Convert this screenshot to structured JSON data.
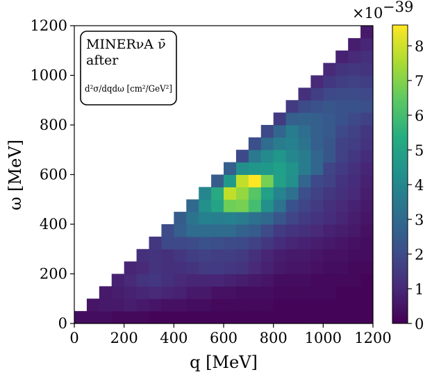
{
  "chart_data": {
    "type": "heatmap",
    "annotation": {
      "line1": "MINERνA ν̄",
      "line2": "after",
      "line3": "d²σ/dqdω [cm²/GeV²]"
    },
    "xlabel": "q [MeV]",
    "ylabel": "ω [MeV]",
    "xlim": [
      0,
      1200
    ],
    "ylim": [
      0,
      1200
    ],
    "bin_width": 50,
    "x_ticks": [
      0,
      200,
      400,
      600,
      800,
      1000,
      1200
    ],
    "y_ticks": [
      0,
      200,
      400,
      600,
      800,
      1000,
      1200
    ],
    "colorbar": {
      "colormap": "viridis",
      "range": [
        0,
        8.6
      ],
      "ticks": [
        0,
        1,
        2,
        3,
        4,
        5,
        6,
        7,
        8
      ],
      "multiplier": "×10^-39"
    },
    "grid": false,
    "values_rows_by_omega_bin": [
      [
        0.3,
        0.3,
        0.3,
        0.2,
        0.2,
        0.2,
        0.1,
        0.1,
        0.1,
        0.1,
        0.1,
        0.1,
        0.1,
        0.1,
        0.1,
        0.1,
        0.1,
        0.1,
        0.1,
        0.1,
        0.1,
        0.1,
        0.1,
        0.1
      ],
      [
        null,
        0.5,
        0.6,
        0.6,
        0.7,
        0.6,
        0.5,
        0.4,
        0.4,
        0.3,
        0.3,
        0.2,
        0.2,
        0.2,
        0.2,
        0.2,
        0.1,
        0.1,
        0.1,
        0.1,
        0.1,
        0.1,
        0.1,
        0.1
      ],
      [
        null,
        null,
        0.6,
        0.7,
        0.8,
        0.9,
        1.0,
        0.9,
        0.8,
        0.6,
        0.6,
        0.4,
        0.4,
        0.3,
        0.3,
        0.3,
        0.2,
        0.2,
        0.2,
        0.2,
        0.2,
        0.1,
        0.1,
        0.1
      ],
      [
        null,
        null,
        null,
        0.8,
        1.0,
        1.3,
        1.4,
        1.2,
        1.0,
        0.9,
        0.9,
        0.9,
        0.8,
        0.7,
        0.6,
        0.5,
        0.3,
        0.3,
        0.3,
        0.2,
        0.2,
        0.2,
        0.2,
        0.1
      ],
      [
        null,
        null,
        null,
        null,
        0.9,
        1.0,
        1.3,
        1.2,
        1.2,
        1.3,
        1.5,
        1.5,
        1.4,
        1.3,
        1.0,
        0.8,
        0.6,
        0.5,
        0.5,
        0.4,
        0.3,
        0.3,
        0.2,
        0.2
      ],
      [
        null,
        null,
        null,
        null,
        null,
        1.2,
        1.3,
        1.2,
        1.4,
        1.6,
        1.7,
        1.6,
        1.6,
        1.5,
        1.2,
        0.9,
        0.7,
        0.6,
        0.6,
        0.5,
        0.4,
        0.4,
        0.3,
        0.3
      ],
      [
        null,
        null,
        null,
        null,
        null,
        null,
        1.4,
        1.9,
        1.9,
        2.0,
        2.2,
        2.1,
        2.0,
        1.9,
        1.7,
        1.4,
        1.1,
        0.9,
        0.8,
        0.7,
        0.6,
        0.5,
        0.4,
        0.3
      ],
      [
        null,
        null,
        null,
        null,
        null,
        null,
        null,
        2.0,
        2.6,
        3.0,
        3.0,
        3.0,
        3.0,
        2.7,
        2.5,
        2.0,
        1.5,
        1.3,
        1.2,
        1.0,
        0.8,
        0.7,
        0.6,
        0.4
      ],
      [
        null,
        null,
        null,
        null,
        null,
        null,
        null,
        null,
        2.5,
        3.3,
        3.8,
        3.7,
        3.8,
        3.6,
        3.2,
        2.9,
        2.3,
        1.8,
        1.5,
        1.3,
        1.1,
        0.9,
        0.7,
        0.5
      ],
      [
        null,
        null,
        null,
        null,
        null,
        null,
        null,
        null,
        null,
        2.9,
        4.3,
        5.0,
        6.7,
        6.8,
        6.0,
        4.3,
        3.3,
        2.2,
        1.8,
        1.5,
        1.2,
        1.0,
        0.8,
        0.6
      ],
      [
        null,
        null,
        null,
        null,
        null,
        null,
        null,
        null,
        null,
        null,
        4.0,
        5.2,
        7.8,
        7.2,
        6.3,
        4.9,
        3.9,
        3.2,
        2.1,
        1.7,
        1.4,
        1.2,
        1.0,
        0.7
      ],
      [
        null,
        null,
        null,
        null,
        null,
        null,
        null,
        null,
        null,
        null,
        null,
        2.5,
        4.6,
        7.8,
        8.6,
        6.8,
        4.9,
        4.3,
        2.8,
        1.9,
        1.7,
        1.3,
        1.1,
        0.8
      ],
      [
        null,
        null,
        null,
        null,
        null,
        null,
        null,
        null,
        null,
        null,
        null,
        null,
        2.6,
        4.3,
        4.5,
        4.6,
        4.8,
        4.4,
        3.6,
        2.8,
        1.8,
        1.5,
        1.2,
        0.9
      ],
      [
        null,
        null,
        null,
        null,
        null,
        null,
        null,
        null,
        null,
        null,
        null,
        null,
        null,
        1.9,
        3.5,
        4.1,
        4.5,
        4.0,
        3.6,
        2.8,
        2.3,
        1.7,
        1.4,
        1.1
      ],
      [
        null,
        null,
        null,
        null,
        null,
        null,
        null,
        null,
        null,
        null,
        null,
        null,
        null,
        null,
        2.1,
        3.0,
        3.6,
        3.8,
        3.3,
        2.6,
        2.3,
        1.7,
        1.6,
        1.3
      ],
      [
        null,
        null,
        null,
        null,
        null,
        null,
        null,
        null,
        null,
        null,
        null,
        null,
        null,
        null,
        null,
        1.9,
        2.8,
        3.6,
        3.1,
        2.6,
        2.4,
        1.9,
        1.7,
        1.4
      ],
      [
        null,
        null,
        null,
        null,
        null,
        null,
        null,
        null,
        null,
        null,
        null,
        null,
        null,
        null,
        null,
        null,
        1.5,
        2.6,
        2.7,
        2.6,
        2.4,
        2.2,
        1.9,
        1.7
      ],
      [
        null,
        null,
        null,
        null,
        null,
        null,
        null,
        null,
        null,
        null,
        null,
        null,
        null,
        null,
        null,
        null,
        null,
        1.5,
        2.0,
        2.2,
        2.3,
        2.2,
        2.2,
        2.1
      ],
      [
        null,
        null,
        null,
        null,
        null,
        null,
        null,
        null,
        null,
        null,
        null,
        null,
        null,
        null,
        null,
        null,
        null,
        null,
        1.2,
        1.6,
        1.9,
        2.0,
        2.0,
        1.9
      ],
      [
        null,
        null,
        null,
        null,
        null,
        null,
        null,
        null,
        null,
        null,
        null,
        null,
        null,
        null,
        null,
        null,
        null,
        null,
        null,
        1.0,
        1.4,
        1.6,
        1.7,
        1.6
      ],
      [
        null,
        null,
        null,
        null,
        null,
        null,
        null,
        null,
        null,
        null,
        null,
        null,
        null,
        null,
        null,
        null,
        null,
        null,
        null,
        null,
        1.0,
        1.3,
        1.4,
        1.3
      ],
      [
        null,
        null,
        null,
        null,
        null,
        null,
        null,
        null,
        null,
        null,
        null,
        null,
        null,
        null,
        null,
        null,
        null,
        null,
        null,
        null,
        null,
        0.8,
        1.0,
        1.2
      ],
      [
        null,
        null,
        null,
        null,
        null,
        null,
        null,
        null,
        null,
        null,
        null,
        null,
        null,
        null,
        null,
        null,
        null,
        null,
        null,
        null,
        null,
        null,
        0.7,
        0.9
      ],
      [
        null,
        null,
        null,
        null,
        null,
        null,
        null,
        null,
        null,
        null,
        null,
        null,
        null,
        null,
        null,
        null,
        null,
        null,
        null,
        null,
        null,
        null,
        null,
        0.6
      ]
    ]
  }
}
